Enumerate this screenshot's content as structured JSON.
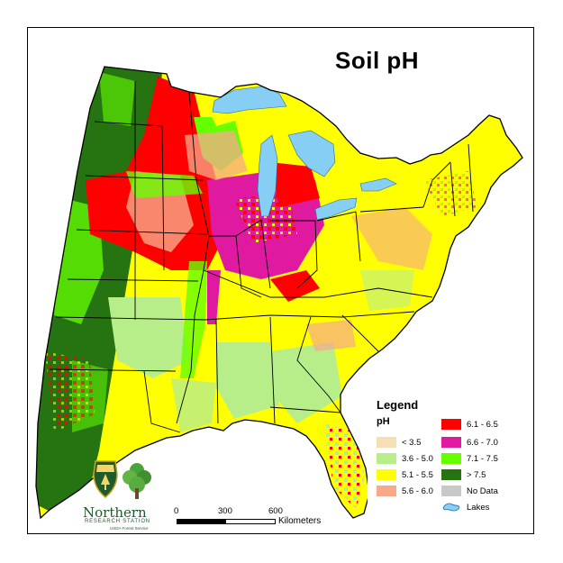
{
  "map": {
    "title": "Soil pH",
    "colors": {
      "lt35": "#f7dfb5",
      "c36_50": "#b7ee8a",
      "c51_55": "#ffff00",
      "c56_60": "#f7a98a",
      "c61_65": "#ff0000",
      "c66_70": "#e01aa0",
      "c71_75": "#66ff00",
      "gt75": "#267312",
      "nodata": "#c8c8c8",
      "lakes": "#87cef5",
      "boundary": "#000000"
    }
  },
  "legend": {
    "title": "Legend",
    "subtitle": "pH",
    "items": [
      {
        "label": "< 3.5",
        "color": "#f7dfb5"
      },
      {
        "label": "3.6 - 5.0",
        "color": "#b7ee8a"
      },
      {
        "label": "5.1 - 5.5",
        "color": "#ffff00"
      },
      {
        "label": "5.6 - 6.0",
        "color": "#f7a98a"
      },
      {
        "label": "6.1 - 6.5",
        "color": "#ff0000"
      },
      {
        "label": "6.6 - 7.0",
        "color": "#e01aa0"
      },
      {
        "label": "7.1 - 7.5",
        "color": "#66ff00"
      },
      {
        "label": "> 7.5",
        "color": "#267312"
      },
      {
        "label": "No Data",
        "color": "#c8c8c8"
      }
    ],
    "lakes_label": "Lakes"
  },
  "scalebar": {
    "ticks": [
      "0",
      "300",
      "600"
    ],
    "unit": "Kilometers"
  },
  "logo": {
    "name": "Northern",
    "subtitle": "RESEARCH STATION",
    "agency": "USDA Forest Service"
  }
}
